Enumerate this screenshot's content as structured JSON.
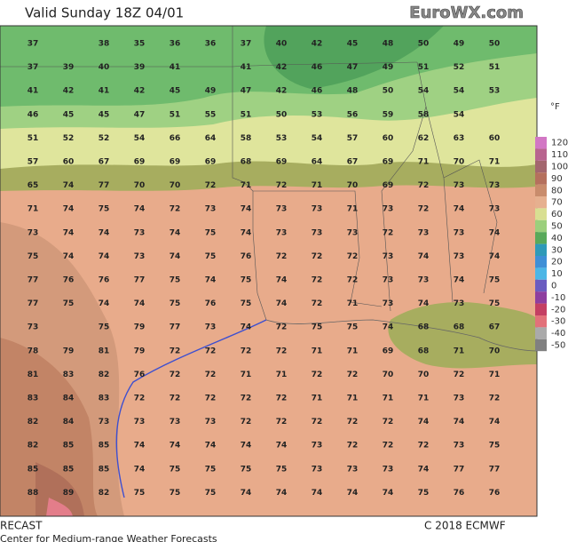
{
  "header": {
    "title": "Valid Sunday 18Z 04/01",
    "brand": "EuroWX.com"
  },
  "legend": {
    "unit": "°F",
    "items": [
      {
        "label": 120,
        "color": "#d277c4"
      },
      {
        "label": 110,
        "color": "#b8648f"
      },
      {
        "label": 100,
        "color": "#a3666e"
      },
      {
        "label": 90,
        "color": "#b5705d"
      },
      {
        "label": 80,
        "color": "#c98c6c"
      },
      {
        "label": 70,
        "color": "#e6b08f"
      },
      {
        "label": 60,
        "color": "#d8df92"
      },
      {
        "label": 50,
        "color": "#9bcf7c"
      },
      {
        "label": 40,
        "color": "#58a95a"
      },
      {
        "label": 30,
        "color": "#2f9ab8"
      },
      {
        "label": 20,
        "color": "#3f8fd6"
      },
      {
        "label": 10,
        "color": "#4cb6e6"
      },
      {
        "label": 0,
        "color": "#6a5cc0"
      },
      {
        "label": -10,
        "color": "#8e3e9f"
      },
      {
        "label": -20,
        "color": "#c43f63"
      },
      {
        "label": -30,
        "color": "#e2717a"
      },
      {
        "label": -40,
        "color": "#aaaaaa"
      },
      {
        "label": -50,
        "color": "#808080"
      }
    ]
  },
  "temperature_grid": {
    "rows": [
      [
        37,
        null,
        38,
        35,
        36,
        36,
        37,
        40,
        42,
        45,
        48,
        50,
        49,
        50
      ],
      [
        37,
        39,
        40,
        39,
        41,
        null,
        41,
        42,
        46,
        47,
        49,
        51,
        52,
        51
      ],
      [
        41,
        42,
        41,
        42,
        45,
        49,
        47,
        42,
        46,
        48,
        50,
        54,
        54,
        53
      ],
      [
        46,
        45,
        45,
        47,
        51,
        55,
        51,
        50,
        53,
        56,
        59,
        58,
        54,
        null
      ],
      [
        51,
        52,
        52,
        54,
        66,
        64,
        58,
        53,
        54,
        57,
        60,
        62,
        63,
        60
      ],
      [
        57,
        60,
        67,
        69,
        69,
        69,
        68,
        69,
        64,
        67,
        69,
        71,
        70,
        71
      ],
      [
        65,
        74,
        77,
        70,
        70,
        72,
        71,
        72,
        71,
        70,
        69,
        72,
        73,
        73
      ],
      [
        71,
        74,
        75,
        74,
        72,
        73,
        74,
        73,
        73,
        71,
        73,
        72,
        74,
        73
      ],
      [
        73,
        74,
        74,
        73,
        74,
        75,
        74,
        73,
        73,
        73,
        72,
        73,
        73,
        74
      ],
      [
        75,
        74,
        74,
        73,
        74,
        75,
        76,
        72,
        72,
        72,
        73,
        74,
        73,
        74
      ],
      [
        77,
        76,
        76,
        77,
        75,
        74,
        75,
        74,
        72,
        72,
        73,
        73,
        74,
        75
      ],
      [
        77,
        75,
        74,
        74,
        75,
        76,
        75,
        74,
        72,
        71,
        73,
        74,
        73,
        75
      ],
      [
        73,
        null,
        75,
        79,
        77,
        73,
        74,
        72,
        75,
        75,
        74,
        68,
        68,
        67
      ],
      [
        78,
        79,
        81,
        79,
        72,
        72,
        72,
        72,
        71,
        71,
        69,
        68,
        71,
        70
      ],
      [
        81,
        83,
        82,
        76,
        72,
        72,
        71,
        71,
        72,
        72,
        70,
        70,
        72,
        71
      ],
      [
        83,
        84,
        83,
        72,
        72,
        72,
        72,
        72,
        71,
        71,
        71,
        71,
        73,
        72
      ],
      [
        82,
        84,
        73,
        73,
        73,
        73,
        72,
        72,
        72,
        72,
        72,
        74,
        74,
        74
      ],
      [
        82,
        85,
        85,
        74,
        74,
        74,
        74,
        74,
        73,
        72,
        72,
        72,
        73,
        75
      ],
      [
        85,
        85,
        85,
        74,
        75,
        75,
        75,
        75,
        73,
        73,
        73,
        74,
        77,
        77
      ],
      [
        88,
        89,
        82,
        75,
        75,
        75,
        74,
        74,
        74,
        74,
        74,
        75,
        76,
        76
      ]
    ]
  },
  "footer": {
    "left": "RECAST",
    "right": "C 2018 ECMWF",
    "center": "Center for Medium-range Weather Forecasts"
  }
}
